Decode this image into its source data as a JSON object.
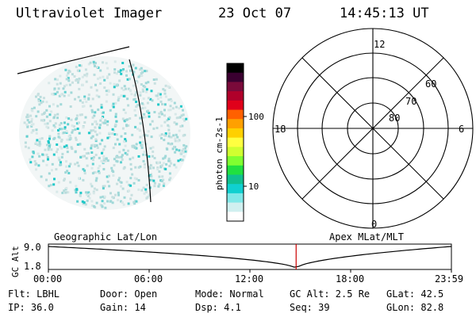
{
  "header": {
    "title": "Ultraviolet Imager",
    "date": "23 Oct 07",
    "time": "14:45:13 UT"
  },
  "colorbar": {
    "label": "photon cm-2s-1",
    "ticks": [
      "100",
      "10"
    ],
    "colors": [
      "#000000",
      "#3a0030",
      "#7a0a3a",
      "#b0002a",
      "#e0001a",
      "#ff6000",
      "#ffa000",
      "#ffd000",
      "#ffff40",
      "#d0ff30",
      "#80ff30",
      "#20e040",
      "#10c090",
      "#10d0d0",
      "#80e8e8",
      "#d0f0f0",
      "#ffffff"
    ]
  },
  "polar": {
    "mlt_labels": [
      "12",
      "18",
      "6",
      "0"
    ],
    "lat_labels": [
      "60",
      "70",
      "80"
    ]
  },
  "timeline": {
    "left_label": "Geographic Lat/Lon",
    "right_label": "Apex MLat/MLT",
    "y_title": "GC Alt",
    "y_top": "9.0",
    "y_bottom": "1.8",
    "x_ticks": [
      "00:00",
      "06:00",
      "12:00",
      "18:00",
      "23:59"
    ],
    "current_fraction": 0.6147
  },
  "status": {
    "flt": "Flt: LBHL",
    "ip": "IP: 36.0",
    "door": "Door: Open",
    "gain": "Gain: 14",
    "mode": "Mode: Normal",
    "dsp": "Dsp:    4.1",
    "gcalt": "GC Alt: 2.5 Re",
    "seq": "Seq: 39",
    "glat": "GLat:  42.5",
    "glon": "GLon:  82.8"
  }
}
